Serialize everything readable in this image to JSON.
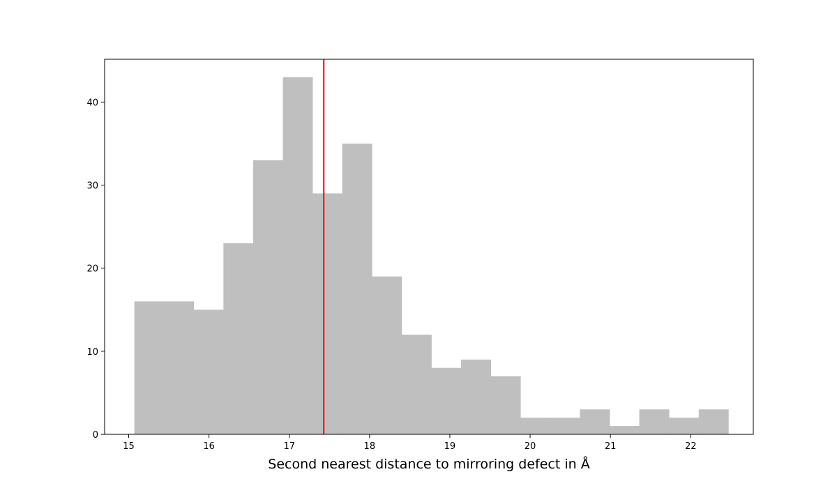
{
  "chart_data": {
    "type": "bar",
    "title": "",
    "xlabel": "Second nearest distance to mirroring defect in Å",
    "ylabel": "",
    "xlim": [
      14.7,
      22.78
    ],
    "ylim": [
      0,
      45.15
    ],
    "bin_edges": [
      15.07,
      15.44,
      15.81,
      16.18,
      16.55,
      16.92,
      17.29,
      17.66,
      18.03,
      18.4,
      18.77,
      19.14,
      19.51,
      19.88,
      20.25,
      20.62,
      20.99,
      21.36,
      21.73,
      22.1,
      22.47
    ],
    "counts": [
      16,
      16,
      15,
      23,
      33,
      43,
      29,
      35,
      19,
      12,
      8,
      9,
      7,
      2,
      2,
      3,
      1,
      3,
      2,
      3
    ],
    "bar_color": "#bfbfbf",
    "reference_line": {
      "x": 17.43,
      "color": "#ff0000"
    },
    "x_ticks": [
      {
        "value": 15,
        "label": "15"
      },
      {
        "value": 16,
        "label": "16"
      },
      {
        "value": 17,
        "label": "17"
      },
      {
        "value": 18,
        "label": "18"
      },
      {
        "value": 19,
        "label": "19"
      },
      {
        "value": 20,
        "label": "20"
      },
      {
        "value": 21,
        "label": "21"
      },
      {
        "value": 22,
        "label": "22"
      }
    ],
    "y_ticks": [
      {
        "value": 0,
        "label": "0"
      },
      {
        "value": 10,
        "label": "10"
      },
      {
        "value": 20,
        "label": "20"
      },
      {
        "value": 30,
        "label": "30"
      },
      {
        "value": 40,
        "label": "40"
      }
    ],
    "grid": false,
    "legend": "none"
  }
}
